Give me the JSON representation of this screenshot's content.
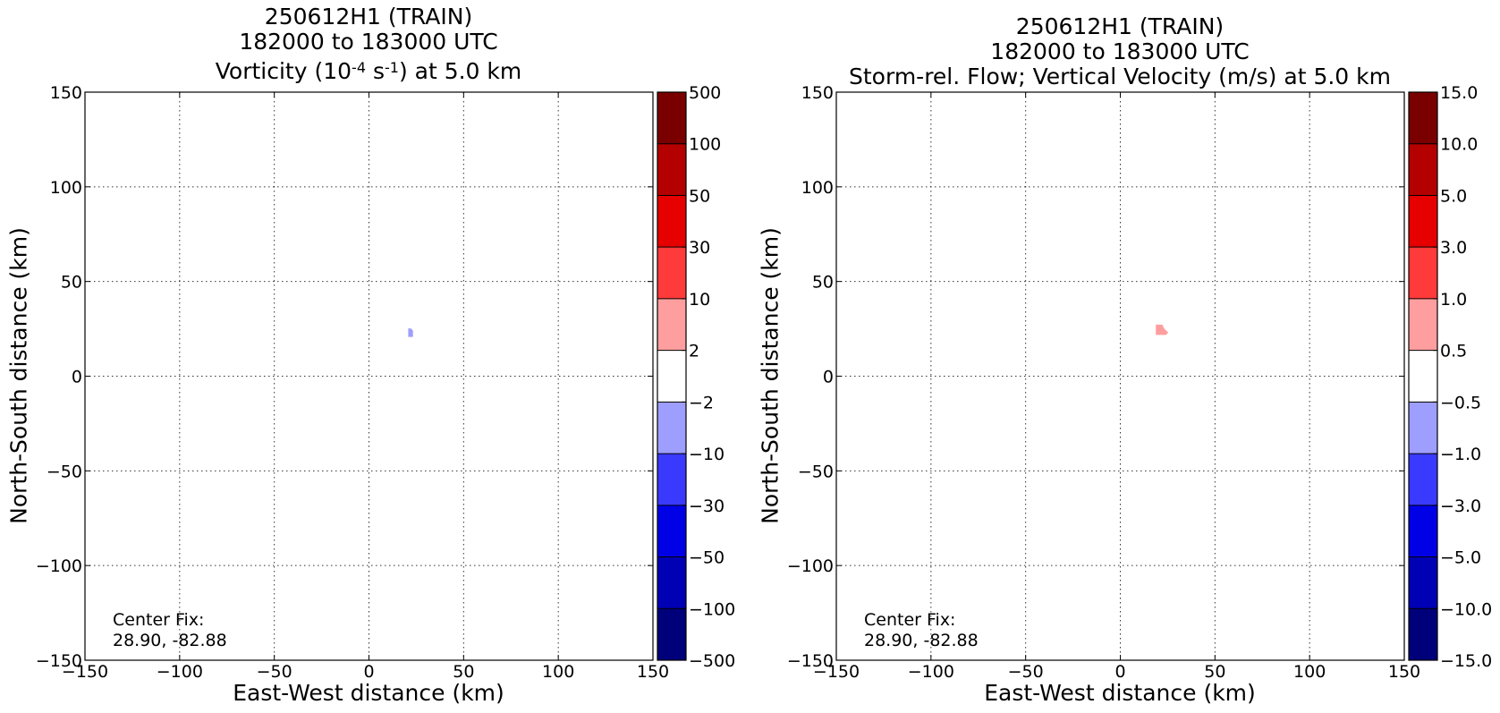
{
  "chart_data": [
    {
      "type": "contour",
      "title_lines": [
        "250612H1 (TRAIN)",
        "182000 to 183000 UTC"
      ],
      "title_line3": {
        "pre": "Vorticity (10",
        "sup1": "-4",
        "mid": " s",
        "sup2": "-1",
        "post": ") at 5.0 km"
      },
      "xlabel": "East-West distance (km)",
      "ylabel": "North-South distance (km)",
      "xlim": [
        -150,
        150
      ],
      "ylim": [
        -150,
        150
      ],
      "xticks": [
        -150,
        -100,
        -50,
        0,
        50,
        100,
        150
      ],
      "yticks": [
        -150,
        -100,
        -50,
        0,
        50,
        100,
        150
      ],
      "xtick_labels": [
        "−150",
        "−100",
        "−50",
        "0",
        "50",
        "100",
        "150"
      ],
      "ytick_labels": [
        "−150",
        "−100",
        "−50",
        "0",
        "50",
        "100",
        "150"
      ],
      "grid": true,
      "annotation": [
        "Center Fix:",
        "28.90, -82.88"
      ],
      "colorbar_labels": [
        "500",
        "100",
        "50",
        "30",
        "10",
        "2",
        "−2",
        "−10",
        "−30",
        "−50",
        "−100",
        "−500"
      ],
      "colorbar_colors": [
        "#7a0000",
        "#b50000",
        "#e60000",
        "#ff3a3a",
        "#ff9e9e",
        "#ffffff",
        "#9e9eff",
        "#3a3aff",
        "#0000e6",
        "#0000b5",
        "#00007a"
      ],
      "features": [
        {
          "x": 22,
          "y": 23,
          "color": "#9e9eff",
          "shape": [
            [
              21,
              21
            ],
            [
              21,
              25
            ],
            [
              22,
              25
            ],
            [
              23,
              24
            ],
            [
              23,
              21
            ]
          ]
        }
      ]
    },
    {
      "type": "contour",
      "title_lines": [
        "250612H1 (TRAIN)",
        "182000 to 183000 UTC",
        "Storm-rel. Flow; Vertical Velocity (m/s) at 5.0 km"
      ],
      "xlabel": "East-West distance (km)",
      "ylabel": "North-South distance (km)",
      "xlim": [
        -150,
        150
      ],
      "ylim": [
        -150,
        150
      ],
      "xticks": [
        -150,
        -100,
        -50,
        0,
        50,
        100,
        150
      ],
      "yticks": [
        -150,
        -100,
        -50,
        0,
        50,
        100,
        150
      ],
      "xtick_labels": [
        "−150",
        "−100",
        "−50",
        "0",
        "50",
        "100",
        "150"
      ],
      "ytick_labels": [
        "−150",
        "−100",
        "−50",
        "0",
        "50",
        "100",
        "150"
      ],
      "grid": true,
      "annotation": [
        "Center Fix:",
        "28.90, -82.88"
      ],
      "colorbar_labels": [
        "15.0",
        "10.0",
        "5.0",
        "3.0",
        "1.0",
        "0.5",
        "−0.5",
        "−1.0",
        "−3.0",
        "−5.0",
        "−10.0",
        "−15.0"
      ],
      "colorbar_colors": [
        "#7a0000",
        "#b50000",
        "#e60000",
        "#ff3a3a",
        "#ff9e9e",
        "#ffffff",
        "#9e9eff",
        "#3a3aff",
        "#0000e6",
        "#0000b5",
        "#00007a"
      ],
      "features": [
        {
          "x": 21,
          "y": 24,
          "color": "#ff9e9e",
          "shape": [
            [
              19,
              22
            ],
            [
              19,
              27
            ],
            [
              22,
              27
            ],
            [
              23,
              25
            ],
            [
              25,
              23
            ],
            [
              24,
              22
            ]
          ]
        }
      ]
    }
  ]
}
